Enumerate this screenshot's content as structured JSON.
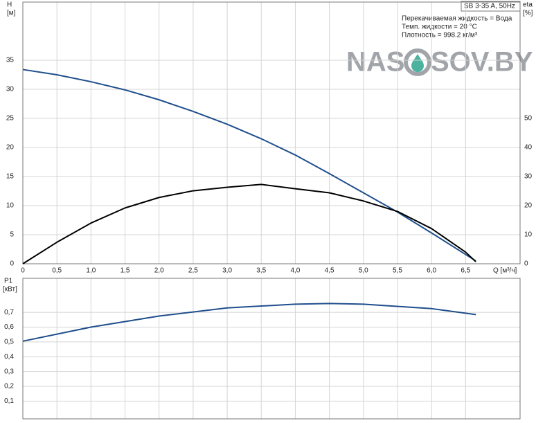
{
  "watermark": {
    "left": "NAS",
    "right": "SOV.BY"
  },
  "chart_data": [
    {
      "type": "line",
      "title": "SB 3-35 A, 50Hz",
      "annotations": [
        "Перекачиваемая жидкость = Вода",
        "Темп. жидкости = 20 °C",
        "Плотность = 998.2 кг/м³"
      ],
      "y_label": "H",
      "y_unit": "[м]",
      "y2_label": "eta",
      "y2_unit": "[%]",
      "x_label": "Q [м³/ч]",
      "x": [
        0,
        0.5,
        1,
        1.5,
        2,
        2.5,
        3,
        3.5,
        4,
        4.5,
        5,
        5.5,
        6,
        6.5,
        6.65
      ],
      "series": [
        {
          "name": "H",
          "color": "#1f4e8c",
          "values": [
            33.4,
            32.5,
            31.3,
            29.9,
            28.2,
            26.2,
            24,
            21.5,
            18.7,
            15.5,
            12.2,
            8.9,
            5.3,
            1.6,
            0.5
          ]
        },
        {
          "name": "eta",
          "color": "#000000",
          "axis": "y2",
          "values": [
            0,
            7.4,
            14,
            19.2,
            22.8,
            25.1,
            26.3,
            27.3,
            25.8,
            24.4,
            21.6,
            18,
            12.1,
            4,
            0.7
          ]
        }
      ],
      "xlim": [
        0,
        7.3
      ],
      "ylim": [
        0,
        45
      ],
      "y2lim": [
        0,
        90
      ],
      "xticks": [
        0,
        {
          "value": 0.5,
          "label": "0,5"
        },
        {
          "value": 1,
          "label": "1,0"
        },
        {
          "value": 1.5,
          "label": "1,5"
        },
        {
          "value": 2,
          "label": "2,0"
        },
        {
          "value": 2.5,
          "label": "2,5"
        },
        {
          "value": 3,
          "label": "3,0"
        },
        {
          "value": 3.5,
          "label": "3,5"
        },
        {
          "value": 4,
          "label": "4,0"
        },
        {
          "value": 4.5,
          "label": "4,5"
        },
        {
          "value": 5,
          "label": "5,0"
        },
        {
          "value": 5.5,
          "label": "5,5"
        },
        {
          "value": 6,
          "label": "6,0"
        },
        {
          "value": 6.5,
          "label": "6,5"
        }
      ],
      "yticks": [
        0,
        5,
        10,
        15,
        20,
        25,
        30,
        35
      ],
      "y2ticks": [
        0,
        10,
        20,
        30,
        40,
        50
      ],
      "grid": true
    },
    {
      "type": "line",
      "y_label": "P1",
      "y_unit": "[кВт]",
      "x": [
        0,
        1,
        2,
        3,
        4,
        4.5,
        5,
        6,
        6.65
      ],
      "series": [
        {
          "name": "P1",
          "color": "#1f4e8c",
          "values": [
            0.505,
            0.6,
            0.675,
            0.73,
            0.755,
            0.76,
            0.755,
            0.725,
            0.685
          ]
        }
      ],
      "xlim": [
        0,
        7.3
      ],
      "ylim": [
        -0.02,
        0.93
      ],
      "yticks": [
        {
          "value": 0.1,
          "label": "0,1"
        },
        {
          "value": 0.2,
          "label": "0,2"
        },
        {
          "value": 0.3,
          "label": "0,3"
        },
        {
          "value": 0.4,
          "label": "0,4"
        },
        {
          "value": 0.5,
          "label": "0,5"
        },
        {
          "value": 0.6,
          "label": "0,6"
        },
        {
          "value": 0.7,
          "label": "0,7"
        }
      ],
      "grid": true
    }
  ]
}
